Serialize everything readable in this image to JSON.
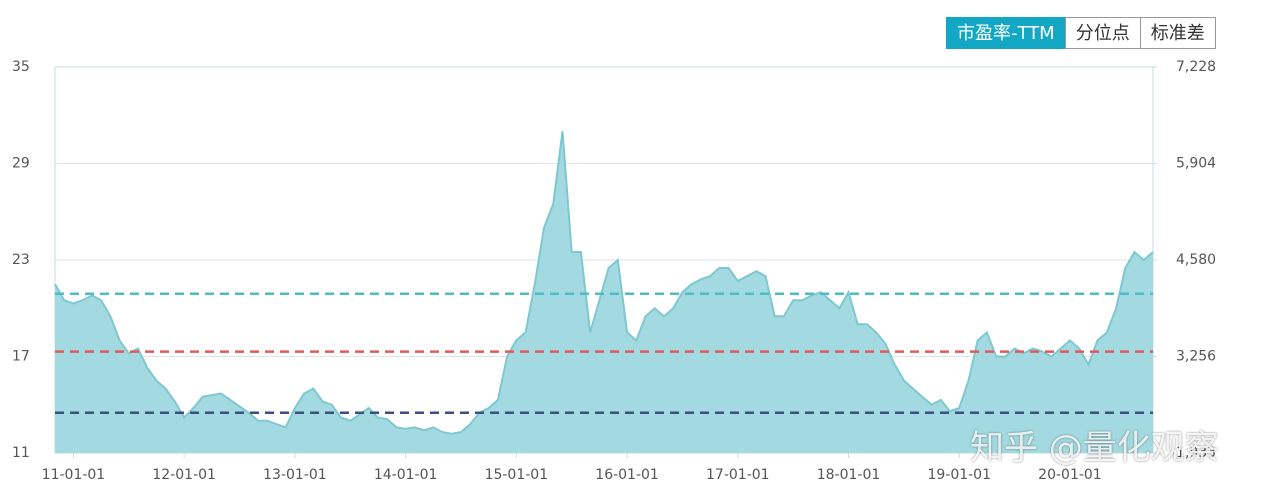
{
  "tabs": [
    "市盈率-TTM",
    "分位点",
    "标准差"
  ],
  "watermark": "知乎 @量化观察",
  "chart_data": {
    "type": "area",
    "categories": [
      null,
      null,
      "11-01-01",
      null,
      null,
      null,
      null,
      null,
      null,
      null,
      null,
      null,
      null,
      null,
      "12-01-01",
      null,
      null,
      null,
      null,
      null,
      null,
      null,
      null,
      null,
      null,
      null,
      "13-01-01",
      null,
      null,
      null,
      null,
      null,
      null,
      null,
      null,
      null,
      null,
      null,
      "14-01-01",
      null,
      null,
      null,
      null,
      null,
      null,
      null,
      null,
      null,
      null,
      null,
      "15-01-01",
      null,
      null,
      null,
      null,
      null,
      null,
      null,
      null,
      null,
      null,
      null,
      "16-01-01",
      null,
      null,
      null,
      null,
      null,
      null,
      null,
      null,
      null,
      null,
      null,
      "17-01-01",
      null,
      null,
      null,
      null,
      null,
      null,
      null,
      null,
      null,
      null,
      null,
      "18-01-01",
      null,
      null,
      null,
      null,
      null,
      null,
      null,
      null,
      null,
      null,
      null,
      "19-01-01",
      null,
      null,
      null,
      null,
      null,
      null,
      null,
      null,
      null,
      null,
      null,
      "20-01-01",
      null,
      null,
      null,
      null,
      null,
      null,
      null,
      null,
      null
    ],
    "values": [
      21.5,
      20.5,
      20.3,
      20.5,
      20.8,
      20.5,
      19.5,
      18,
      17.2,
      17.5,
      16.3,
      15.5,
      15,
      14.2,
      13.2,
      13.8,
      14.5,
      14.6,
      14.7,
      14.3,
      13.9,
      13.5,
      13,
      13,
      12.8,
      12.6,
      13.8,
      14.7,
      15,
      14.2,
      14,
      13.2,
      13,
      13.4,
      13.8,
      13.2,
      13.1,
      12.6,
      12.5,
      12.6,
      12.4,
      12.6,
      12.3,
      12.2,
      12.3,
      12.8,
      13.5,
      13.8,
      14.3,
      17,
      18,
      18.5,
      21.5,
      25,
      26.5,
      31,
      23.5,
      23.5,
      18.5,
      20.5,
      22.5,
      23,
      18.5,
      18,
      19.5,
      20,
      19.5,
      20,
      21,
      21.5,
      21.8,
      22,
      22.5,
      22.5,
      21.7,
      22,
      22.3,
      22,
      19.5,
      19.5,
      20.5,
      20.5,
      20.8,
      21,
      20.5,
      20,
      21,
      19,
      19,
      18.5,
      17.8,
      16.5,
      15.5,
      15,
      14.5,
      14,
      14.3,
      13.6,
      13.8,
      15.5,
      18,
      18.5,
      17,
      17,
      17.5,
      17.2,
      17.5,
      17.3,
      17,
      17.5,
      18,
      17.5,
      16.5,
      18,
      18.5,
      20,
      22.5,
      23.5,
      23,
      23.5
    ],
    "color": "#7fc8cf",
    "fill": "#a3d9e0",
    "ylim": [
      11,
      35
    ],
    "yticks": [
      11,
      17,
      23,
      29,
      35
    ],
    "y2lim": [
      1933,
      7228
    ],
    "y2ticks": [
      {
        "value": 1933,
        "label": "1,933"
      },
      {
        "value": 3256,
        "label": "3,256"
      },
      {
        "value": 4580,
        "label": "4,580"
      },
      {
        "value": 5904,
        "label": "5,904"
      },
      {
        "value": 7228,
        "label": "7,228"
      }
    ],
    "grid": true,
    "reference_lines": [
      {
        "value": 20.9,
        "color": "#4fbcc4"
      },
      {
        "value": 17.3,
        "color": "#e05a5a"
      },
      {
        "value": 13.5,
        "color": "#3d4f80"
      }
    ]
  }
}
